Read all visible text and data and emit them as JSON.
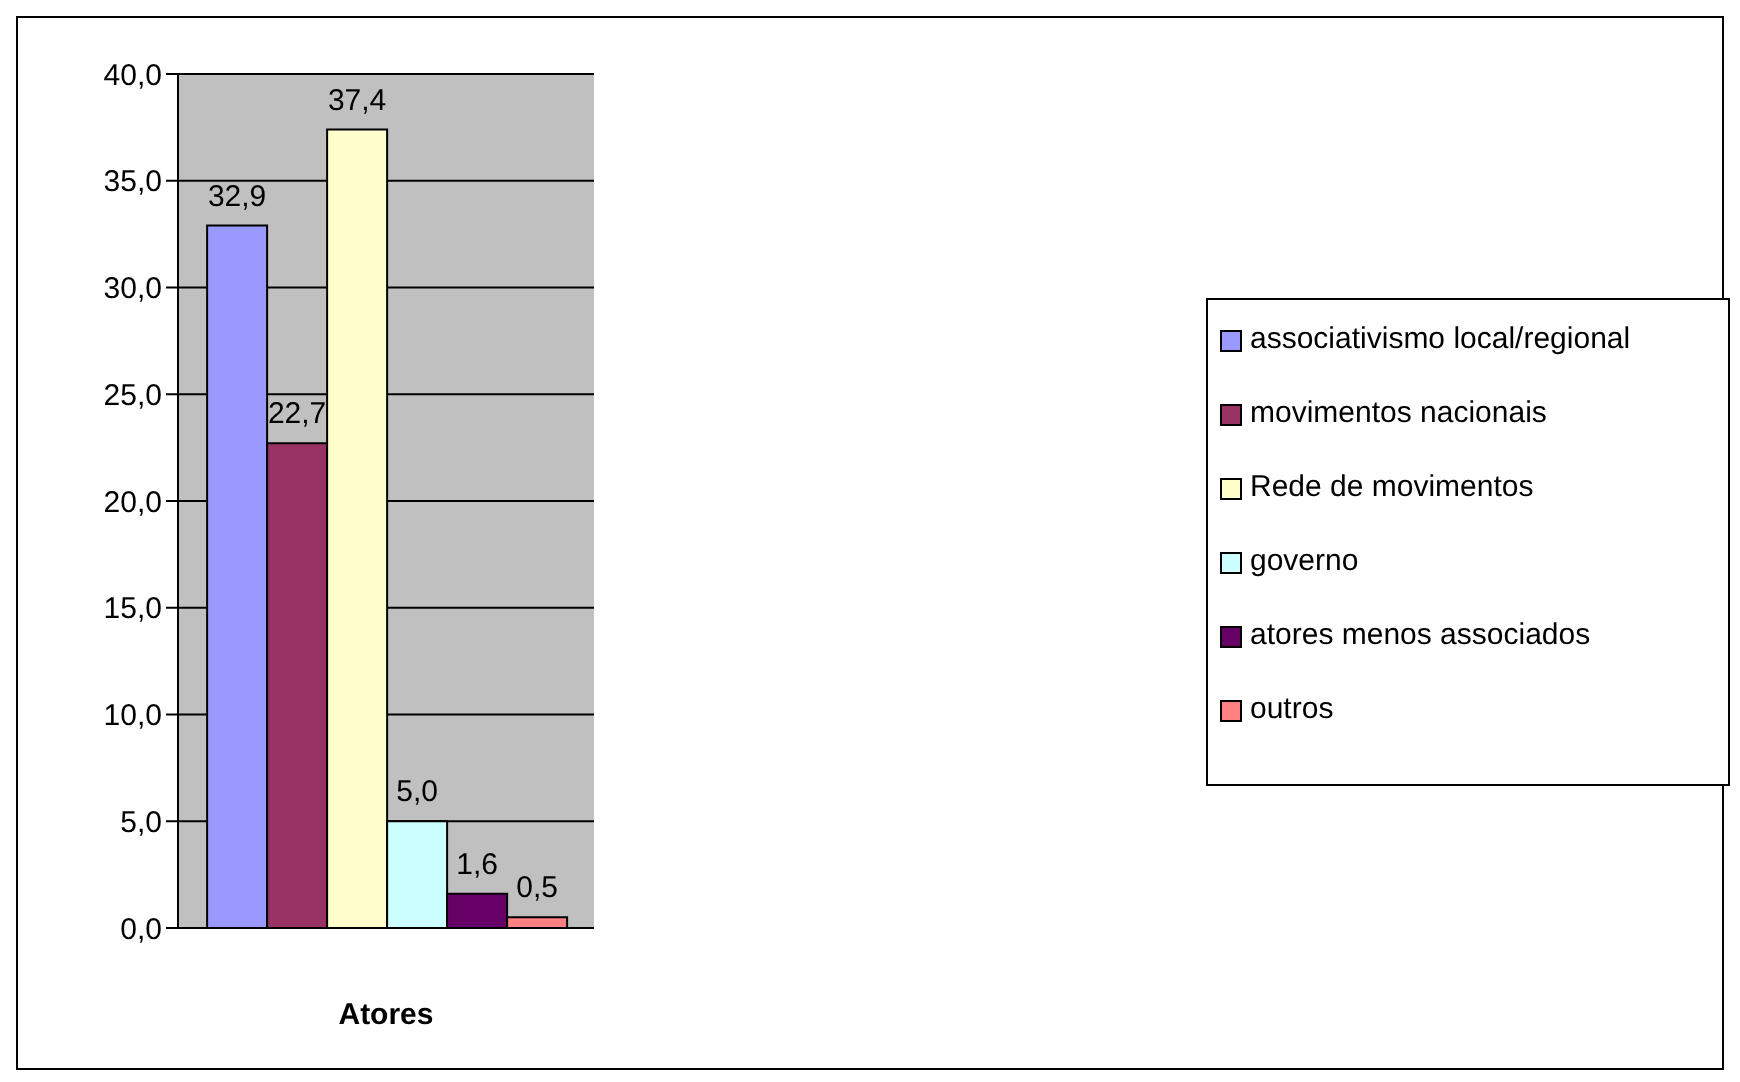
{
  "chart_data": {
    "type": "bar",
    "xlabel": "Atores",
    "categories": [
      null
    ],
    "series": [
      {
        "name": "associativismo local/regional",
        "color": "#9999ff",
        "values": [
          32.9
        ],
        "value_labels": [
          "32,9"
        ]
      },
      {
        "name": "movimentos nacionais",
        "color": "#993366",
        "values": [
          22.7
        ],
        "value_labels": [
          "22,7"
        ]
      },
      {
        "name": "Rede de movimentos",
        "color": "#ffffcc",
        "values": [
          37.4
        ],
        "value_labels": [
          "37,4"
        ]
      },
      {
        "name": "governo",
        "color": "#ccffff",
        "values": [
          5.0
        ],
        "value_labels": [
          "5,0"
        ]
      },
      {
        "name": "atores menos associados",
        "color": "#660066",
        "values": [
          1.6
        ],
        "value_labels": [
          "1,6"
        ]
      },
      {
        "name": "outros",
        "color": "#ff8080",
        "values": [
          0.5
        ],
        "value_labels": [
          "0,5"
        ]
      }
    ],
    "ylim": [
      0,
      40
    ],
    "yticks": [
      {
        "value": 0,
        "label": "0,0"
      },
      {
        "value": 5,
        "label": "5,0"
      },
      {
        "value": 10,
        "label": "10,0"
      },
      {
        "value": 15,
        "label": "15,0"
      },
      {
        "value": 20,
        "label": "20,0"
      },
      {
        "value": 25,
        "label": "25,0"
      },
      {
        "value": 30,
        "label": "30,0"
      },
      {
        "value": 35,
        "label": "35,0"
      },
      {
        "value": 40,
        "label": "40,0"
      }
    ],
    "grid": "y",
    "legend": "right"
  }
}
